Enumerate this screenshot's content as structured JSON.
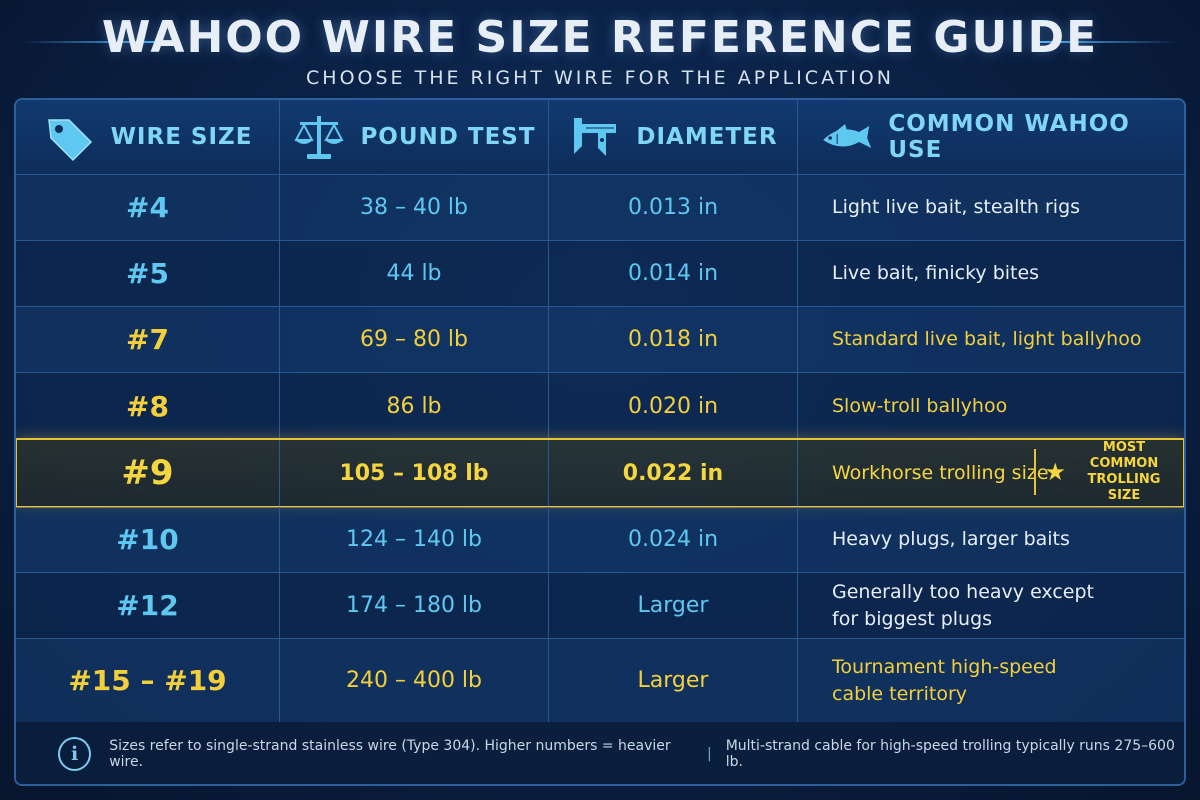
{
  "title": "WAHOO WIRE SIZE REFERENCE GUIDE",
  "subtitle": "CHOOSE THE RIGHT WIRE FOR THE APPLICATION",
  "headers": {
    "wire_size": "WIRE SIZE",
    "pound_test": "POUND TEST",
    "diameter": "DIAMETER",
    "use": "COMMON WAHOO USE"
  },
  "icons": {
    "wire_size": "tag-icon",
    "pound_test": "scale-icon",
    "diameter": "caliper-icon",
    "use": "fish-icon"
  },
  "rows": [
    {
      "size": "#4",
      "test": "38 – 40 lb",
      "diameter": "0.013 in",
      "use_line1": "Light live bait, stealth rigs",
      "use_line2": ""
    },
    {
      "size": "#5",
      "test": "44 lb",
      "diameter": "0.014 in",
      "use_line1": "Live bait, finicky bites",
      "use_line2": ""
    },
    {
      "size": "#7",
      "test": "69 – 80 lb",
      "diameter": "0.018 in",
      "use_line1": "Standard live bait, light ballyhoo",
      "use_line2": ""
    },
    {
      "size": "#8",
      "test": "86 lb",
      "diameter": "0.020 in",
      "use_line1": "Slow-troll ballyhoo",
      "use_line2": ""
    },
    {
      "size": "#9",
      "test": "105 – 108 lb",
      "diameter": "0.022 in",
      "use_line1": "Workhorse trolling size",
      "use_line2": ""
    },
    {
      "size": "#10",
      "test": "124 – 140 lb",
      "diameter": "0.024 in",
      "use_line1": "Heavy plugs, larger baits",
      "use_line2": ""
    },
    {
      "size": "#12",
      "test": "174 – 180 lb",
      "diameter": "Larger",
      "use_line1": "Generally too heavy except",
      "use_line2": "for biggest plugs"
    },
    {
      "size": "#15 – #19",
      "test": "240 – 400 lb",
      "diameter": "Larger",
      "use_line1": "Tournament high-speed",
      "use_line2": "cable territory"
    }
  ],
  "badge": {
    "line1": "MOST COMMON",
    "line2": "TROLLING SIZE",
    "icon": "star-icon"
  },
  "footer": {
    "icon": "info-icon",
    "note1": "Sizes refer to single-strand stainless wire (Type 304). Higher numbers = heavier wire.",
    "separator": "|",
    "note2": "Multi-strand cable for high-speed trolling typically runs 275–600 lb."
  },
  "colors": {
    "background": "#0b2247",
    "accent_blue": "#5fc8f0",
    "accent_gold": "#f3cf3c",
    "highlight_border": "#e8c23a",
    "grid": "#2a5890"
  }
}
